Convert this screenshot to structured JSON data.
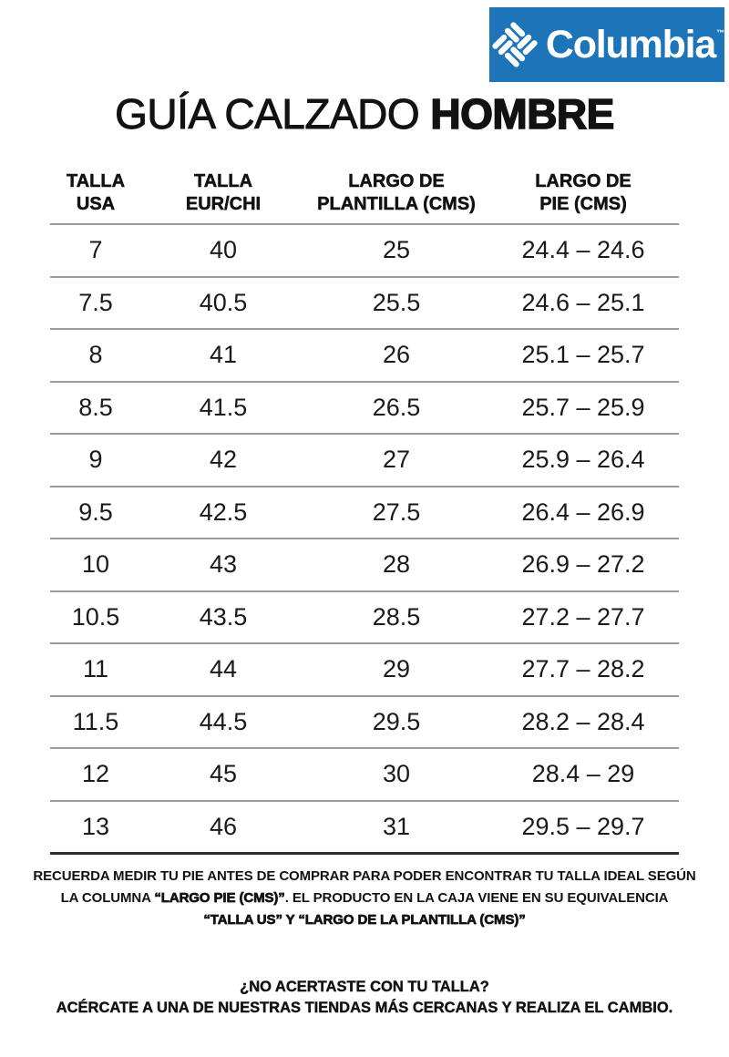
{
  "brand": {
    "name": "Columbia",
    "trademark": "™",
    "logo_bg_color": "#1d74b8",
    "logo_text_color": "#ffffff",
    "gem_icon": "columbia-gem-icon"
  },
  "title": {
    "regular": "GUÍA CALZADO ",
    "bold": "HOMBRE"
  },
  "table": {
    "headers": [
      "TALLA\nUSA",
      "TALLA\nEUR/CHI",
      "LARGO DE\nPLANTILLA (CMS)",
      "LARGO DE\nPIE (CMS)"
    ],
    "rows": [
      [
        "7",
        "40",
        "25",
        "24.4 – 24.6"
      ],
      [
        "7.5",
        "40.5",
        "25.5",
        "24.6 – 25.1"
      ],
      [
        "8",
        "41",
        "26",
        "25.1 – 25.7"
      ],
      [
        "8.5",
        "41.5",
        "26.5",
        "25.7 – 25.9"
      ],
      [
        "9",
        "42",
        "27",
        "25.9 – 26.4"
      ],
      [
        "9.5",
        "42.5",
        "27.5",
        "26.4 – 26.9"
      ],
      [
        "10",
        "43",
        "28",
        "26.9 – 27.2"
      ],
      [
        "10.5",
        "43.5",
        "28.5",
        "27.2 – 27.7"
      ],
      [
        "11",
        "44",
        "29",
        "27.7 – 28.2"
      ],
      [
        "11.5",
        "44.5",
        "29.5",
        "28.2 – 28.4"
      ],
      [
        "12",
        "45",
        "30",
        "28.4 – 29"
      ],
      [
        "13",
        "46",
        "31",
        "29.5 – 29.7"
      ]
    ],
    "divider_color": "#9b9b9b",
    "bottom_line_color": "#2e2e2e"
  },
  "note": {
    "line1": "RECUERDA MEDIR TU PIE ANTES DE COMPRAR PARA PODER ENCONTRAR TU TALLA IDEAL SEGÚN",
    "line2_pre": "LA COLUMNA ",
    "line2_bold": "“LARGO PIE (CMS)”",
    "line2_post": ". EL PRODUCTO EN LA CAJA VIENE EN SU EQUIVALENCIA",
    "line3_bold": "“TALLA US” Y “LARGO DE LA PLANTILLA (CMS)”"
  },
  "footer": {
    "line1": "¿NO ACERTASTE CON TU TALLA?",
    "line2": "ACÉRCATE A UNA DE NUESTRAS TIENDAS MÁS CERCANAS Y REALIZA EL CAMBIO."
  }
}
